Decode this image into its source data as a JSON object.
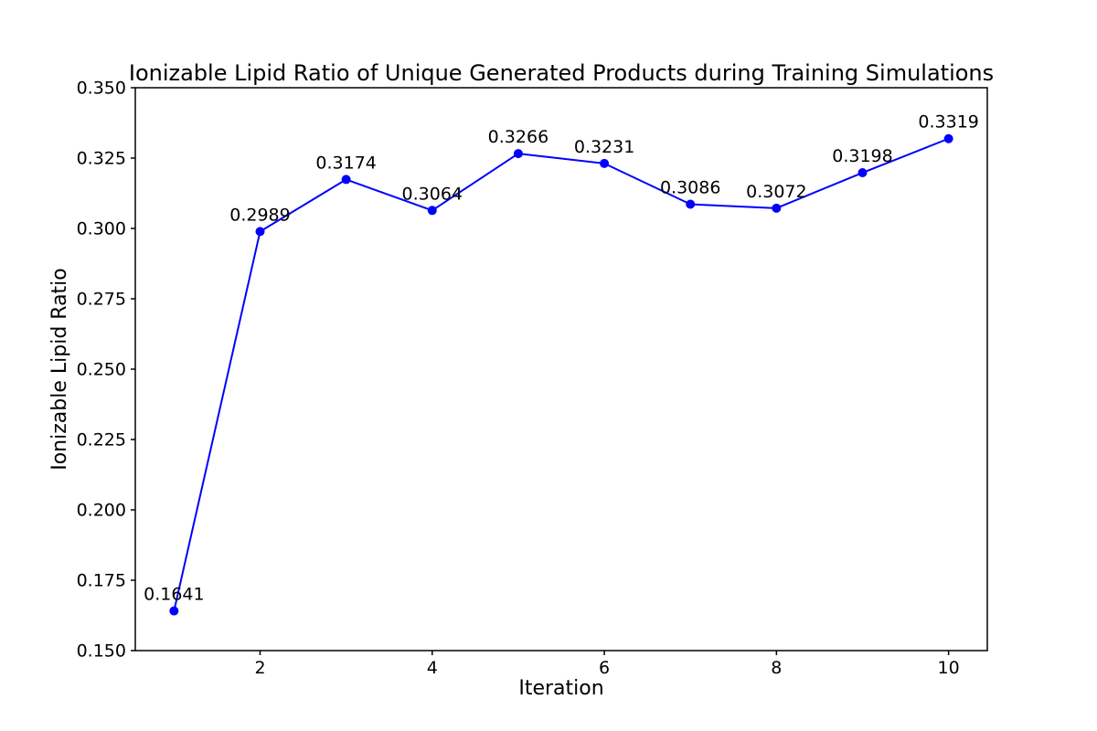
{
  "figure": {
    "background_color": "#ffffff",
    "text_color": "#000000",
    "spine_color": "#000000"
  },
  "chart_data": {
    "type": "line",
    "title": "Ionizable Lipid Ratio of Unique Generated Products during Training Simulations",
    "xlabel": "Iteration",
    "ylabel": "Ionizable Lipid Ratio",
    "x": [
      1,
      2,
      3,
      4,
      5,
      6,
      7,
      8,
      9,
      10
    ],
    "values": [
      0.1641,
      0.2989,
      0.3174,
      0.3064,
      0.3266,
      0.3231,
      0.3086,
      0.3072,
      0.3198,
      0.3319
    ],
    "point_labels": [
      "0.1641",
      "0.2989",
      "0.3174",
      "0.3064",
      "0.3266",
      "0.3231",
      "0.3086",
      "0.3072",
      "0.3198",
      "0.3319"
    ],
    "xlim": [
      0.55,
      10.45
    ],
    "ylim": [
      0.15,
      0.35
    ],
    "xticks": [
      2,
      4,
      6,
      8,
      10
    ],
    "xtick_labels": [
      "2",
      "4",
      "6",
      "8",
      "10"
    ],
    "yticks": [
      0.15,
      0.175,
      0.2,
      0.225,
      0.25,
      0.275,
      0.3,
      0.325,
      0.35
    ],
    "ytick_labels": [
      "0.150",
      "0.175",
      "0.200",
      "0.225",
      "0.250",
      "0.275",
      "0.300",
      "0.325",
      "0.350"
    ],
    "grid": false,
    "legend": null,
    "line_color": "#0000ff",
    "marker": "circle",
    "marker_radius": 5,
    "line_width": 2
  }
}
